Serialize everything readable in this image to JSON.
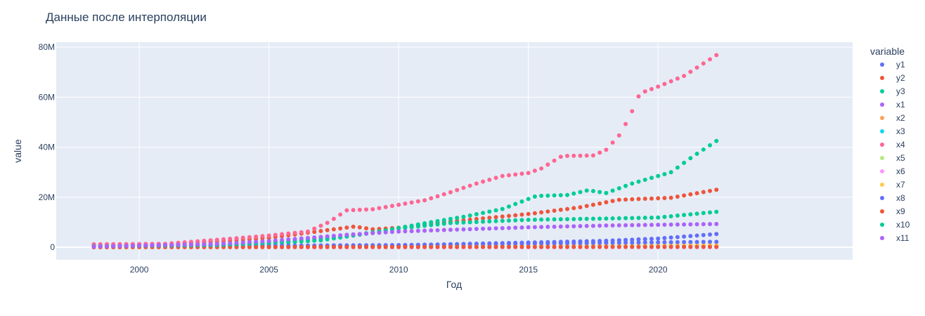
{
  "chart_data": {
    "type": "scatter",
    "title": "Данные после интерполяции",
    "xlabel": "Год",
    "ylabel": "value",
    "xlim": [
      1996.8,
      2027.5
    ],
    "ylim": [
      -5000000,
      82000000
    ],
    "x_ticks": [
      2000,
      2005,
      2010,
      2015,
      2020
    ],
    "x_tick_labels": [
      "2000",
      "2005",
      "2010",
      "2015",
      "2020"
    ],
    "y_ticks": [
      0,
      20000000,
      40000000,
      60000000,
      80000000
    ],
    "y_tick_labels": [
      "0",
      "20M",
      "40M",
      "60M",
      "80M"
    ],
    "grid": true,
    "legend_title": "variable",
    "legend_position": "right",
    "sampling": {
      "start": 1998.25,
      "end": 2022.25,
      "step": 0.25
    },
    "series": [
      {
        "name": "y1",
        "color": "#636efa",
        "anchors": [
          [
            1998.25,
            100000
          ],
          [
            2005,
            150000
          ],
          [
            2010,
            800000
          ],
          [
            2015,
            1900000
          ],
          [
            2018,
            2600000
          ],
          [
            2020,
            3500000
          ],
          [
            2022.25,
            5300000
          ]
        ]
      },
      {
        "name": "y2",
        "color": "#EF553B",
        "anchors": [
          [
            1998.25,
            1100000
          ],
          [
            2001,
            1200000
          ],
          [
            2003,
            2300000
          ],
          [
            2005,
            3800000
          ],
          [
            2007,
            6500000
          ],
          [
            2008.3,
            8300000
          ],
          [
            2009,
            7200000
          ],
          [
            2010,
            7800000
          ],
          [
            2012,
            10300000
          ],
          [
            2015,
            13300000
          ],
          [
            2017,
            16000000
          ],
          [
            2018.5,
            19000000
          ],
          [
            2020.5,
            19800000
          ],
          [
            2022.25,
            23000000
          ]
        ]
      },
      {
        "name": "y3",
        "color": "#00cc96",
        "anchors": [
          [
            1998.25,
            700000
          ],
          [
            2003,
            900000
          ],
          [
            2005,
            1500000
          ],
          [
            2007,
            2800000
          ],
          [
            2009,
            5800000
          ],
          [
            2011,
            9600000
          ],
          [
            2012.5,
            12200000
          ],
          [
            2014,
            15300000
          ],
          [
            2015.3,
            20500000
          ],
          [
            2016.5,
            20900000
          ],
          [
            2017.3,
            22800000
          ],
          [
            2018,
            21700000
          ],
          [
            2019,
            25500000
          ],
          [
            2020.5,
            30000000
          ],
          [
            2021.3,
            36000000
          ],
          [
            2022.25,
            42500000
          ]
        ]
      },
      {
        "name": "x1",
        "color": "#ab63fa",
        "anchors": [
          [
            1998.25,
            50000
          ],
          [
            2010,
            100000
          ],
          [
            2022.25,
            150000
          ]
        ]
      },
      {
        "name": "x2",
        "color": "#FFA15A",
        "anchors": [
          [
            1998.25,
            10000
          ],
          [
            2010,
            150000
          ],
          [
            2020,
            500000
          ],
          [
            2022.25,
            800000
          ]
        ]
      },
      {
        "name": "x3",
        "color": "#19d3f3",
        "anchors": [
          [
            1998.25,
            30000
          ],
          [
            2022.25,
            80000
          ]
        ]
      },
      {
        "name": "x4",
        "color": "#FF6692",
        "anchors": [
          [
            1998.25,
            1200000
          ],
          [
            2001,
            1400000
          ],
          [
            2003,
            3000000
          ],
          [
            2005,
            4700000
          ],
          [
            2006.5,
            6300000
          ],
          [
            2007.3,
            10000000
          ],
          [
            2008,
            14800000
          ],
          [
            2009,
            15200000
          ],
          [
            2010,
            17000000
          ],
          [
            2011,
            18800000
          ],
          [
            2012,
            22000000
          ],
          [
            2013,
            25500000
          ],
          [
            2014,
            28500000
          ],
          [
            2015,
            29700000
          ],
          [
            2015.5,
            31500000
          ],
          [
            2016.3,
            36500000
          ],
          [
            2017.5,
            36700000
          ],
          [
            2018,
            39000000
          ],
          [
            2018.5,
            44700000
          ],
          [
            2018.9,
            52000000
          ],
          [
            2019.3,
            61500000
          ],
          [
            2020,
            64200000
          ],
          [
            2021,
            68500000
          ],
          [
            2022.25,
            76800000
          ]
        ]
      },
      {
        "name": "x5",
        "color": "#B6E880",
        "anchors": [
          [
            1998.25,
            20000
          ],
          [
            2022.25,
            60000
          ]
        ]
      },
      {
        "name": "x6",
        "color": "#FF97FF",
        "anchors": [
          [
            1998.25,
            15000
          ],
          [
            2022.25,
            40000
          ]
        ]
      },
      {
        "name": "x7",
        "color": "#FECB52",
        "anchors": [
          [
            1998.25,
            40000
          ],
          [
            2010,
            200000
          ],
          [
            2022.25,
            1100000
          ]
        ]
      },
      {
        "name": "x8",
        "color": "#636efa",
        "anchors": [
          [
            1998.25,
            300000
          ],
          [
            2010,
            900000
          ],
          [
            2015,
            1500000
          ],
          [
            2022.25,
            2200000
          ]
        ]
      },
      {
        "name": "x9",
        "color": "#EF553B",
        "anchors": [
          [
            1998.25,
            60000
          ],
          [
            2022.25,
            200000
          ]
        ]
      },
      {
        "name": "x10",
        "color": "#00cc96",
        "anchors": [
          [
            1998.25,
            400000
          ],
          [
            2003,
            900000
          ],
          [
            2005,
            1800000
          ],
          [
            2008,
            4500000
          ],
          [
            2010,
            7500000
          ],
          [
            2012,
            9700000
          ],
          [
            2015,
            11000000
          ],
          [
            2018,
            11500000
          ],
          [
            2020,
            11900000
          ],
          [
            2022.25,
            14200000
          ]
        ]
      },
      {
        "name": "x11",
        "color": "#ab63fa",
        "anchors": [
          [
            1998.25,
            300000
          ],
          [
            2003,
            1300000
          ],
          [
            2005,
            2500000
          ],
          [
            2008,
            5000000
          ],
          [
            2010,
            6300000
          ],
          [
            2012,
            7000000
          ],
          [
            2015,
            8000000
          ],
          [
            2018,
            8700000
          ],
          [
            2022.25,
            9300000
          ]
        ]
      }
    ]
  }
}
